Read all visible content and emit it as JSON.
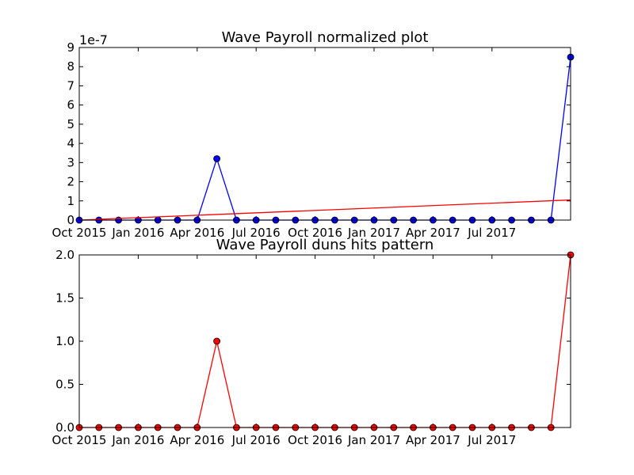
{
  "chart_data": [
    {
      "type": "line",
      "title": "Wave Payroll normalized plot",
      "xlabel": "",
      "ylabel": "",
      "y_offset_label": "1e-7",
      "ylim": [
        0,
        9
      ],
      "yticks": [
        "0",
        "1",
        "2",
        "3",
        "4",
        "5",
        "6",
        "7",
        "8",
        "9"
      ],
      "xticks": [
        "Oct 2015",
        "Jan 2016",
        "Apr 2016",
        "Jul 2016",
        "Oct 2016",
        "Jan 2017",
        "Apr 2017",
        "Jul 2017"
      ],
      "x": [
        "2015-10",
        "2015-11",
        "2015-12",
        "2016-01",
        "2016-02",
        "2016-03",
        "2016-04",
        "2016-05",
        "2016-06",
        "2016-07",
        "2016-08",
        "2016-09",
        "2016-10",
        "2016-11",
        "2016-12",
        "2017-01",
        "2017-02",
        "2017-03",
        "2017-04",
        "2017-05",
        "2017-06",
        "2017-07",
        "2017-08",
        "2017-09",
        "2017-10",
        "2017-11"
      ],
      "series": [
        {
          "color": "#0000ff",
          "marker": "circle",
          "values": [
            0,
            0,
            0,
            0,
            0,
            0,
            0,
            3.2,
            0,
            0,
            0,
            0,
            0,
            0,
            0,
            0,
            0,
            0,
            0,
            0,
            0,
            0,
            0,
            0,
            0,
            8.5
          ]
        },
        {
          "color": "#ff0000",
          "marker": "none",
          "trend_start": 0.0,
          "trend_end": 1.05
        }
      ],
      "grid": false
    },
    {
      "type": "line",
      "title": "Wave Payroll duns hits pattern",
      "xlabel": "",
      "ylabel": "",
      "ylim": [
        0,
        2
      ],
      "yticks": [
        "0.0",
        "0.5",
        "1.0",
        "1.5",
        "2.0"
      ],
      "xticks": [
        "Oct 2015",
        "Jan 2016",
        "Apr 2016",
        "Jul 2016",
        "Oct 2016",
        "Jan 2017",
        "Apr 2017",
        "Jul 2017"
      ],
      "x": [
        "2015-10",
        "2015-11",
        "2015-12",
        "2016-01",
        "2016-02",
        "2016-03",
        "2016-04",
        "2016-05",
        "2016-06",
        "2016-07",
        "2016-08",
        "2016-09",
        "2016-10",
        "2016-11",
        "2016-12",
        "2017-01",
        "2017-02",
        "2017-03",
        "2017-04",
        "2017-05",
        "2017-06",
        "2017-07",
        "2017-08",
        "2017-09",
        "2017-10",
        "2017-11"
      ],
      "series": [
        {
          "color": "#ff0000",
          "marker": "circle",
          "values": [
            0,
            0,
            0,
            0,
            0,
            0,
            0,
            1,
            0,
            0,
            0,
            0,
            0,
            0,
            0,
            0,
            0,
            0,
            0,
            0,
            0,
            0,
            0,
            0,
            0,
            2
          ]
        }
      ],
      "grid": false
    }
  ]
}
